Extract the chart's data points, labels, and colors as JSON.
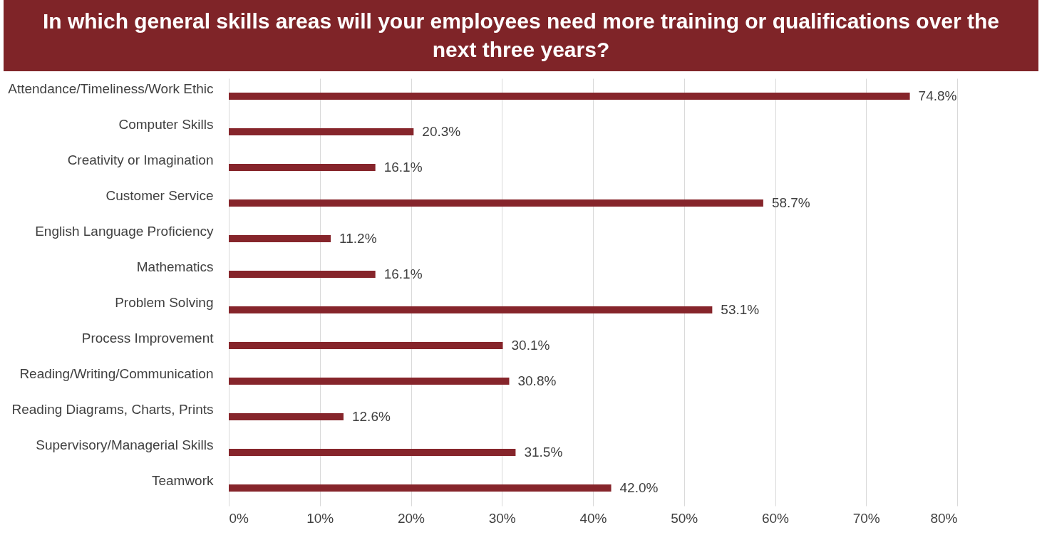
{
  "chart_data": {
    "type": "bar",
    "orientation": "horizontal",
    "title": "In which general skills areas will your employees need more training or qualifications over the next three years?",
    "categories": [
      "Attendance/Timeliness/Work Ethic",
      "Computer Skills",
      "Creativity or Imagination",
      "Customer Service",
      "English Language Proficiency",
      "Mathematics",
      "Problem Solving",
      "Process Improvement",
      "Reading/Writing/Communication",
      "Reading Diagrams, Charts, Prints",
      "Supervisory/Managerial Skills",
      "Teamwork"
    ],
    "values": [
      74.8,
      20.3,
      16.1,
      58.7,
      11.2,
      16.1,
      53.1,
      30.1,
      30.8,
      12.6,
      31.5,
      42.0
    ],
    "value_labels": [
      "74.8%",
      "20.3%",
      "16.1%",
      "58.7%",
      "11.2%",
      "16.1%",
      "53.1%",
      "30.1%",
      "30.8%",
      "12.6%",
      "31.5%",
      "42.0%"
    ],
    "color": "#86252b",
    "xlim": [
      0,
      80
    ],
    "xticks": [
      {
        "value": 0,
        "label": "0%"
      },
      {
        "value": 10,
        "label": "10%"
      },
      {
        "value": 20,
        "label": "20%"
      },
      {
        "value": 30,
        "label": "30%"
      },
      {
        "value": 40,
        "label": "40%"
      },
      {
        "value": 50,
        "label": "50%"
      },
      {
        "value": 60,
        "label": "60%"
      },
      {
        "value": 70,
        "label": "70%"
      },
      {
        "value": 80,
        "label": "80%"
      }
    ],
    "grid": true
  }
}
